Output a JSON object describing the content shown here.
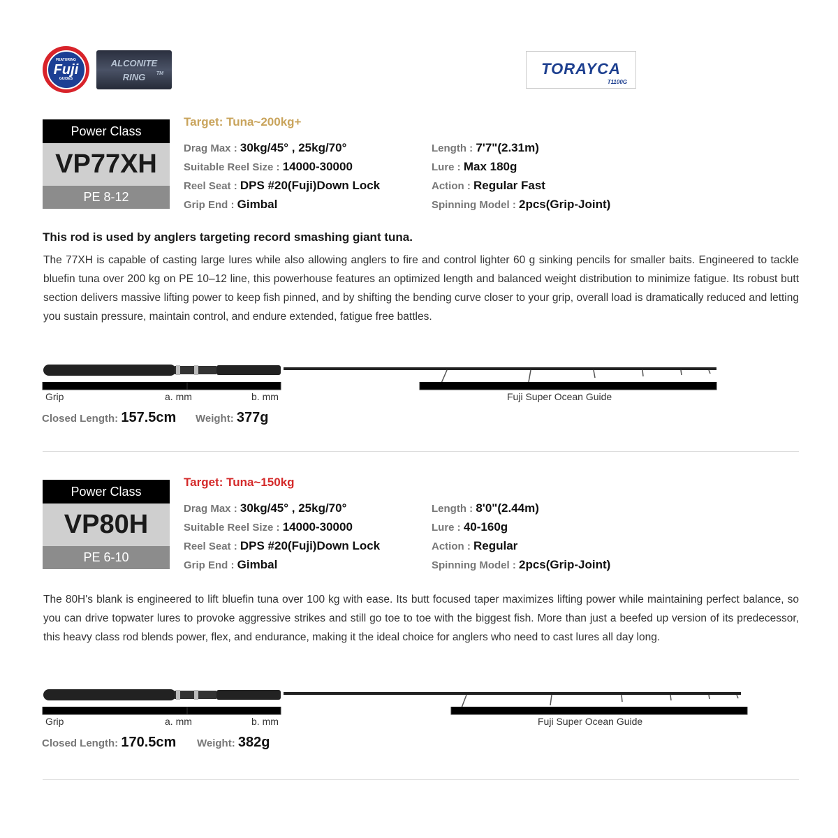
{
  "logos": {
    "fuji": {
      "top": "FEATURING",
      "main": "Fuji",
      "bottom": "GUIDES"
    },
    "alconite": {
      "line1": "ALCONITE",
      "line2": "RING",
      "tm": "TM"
    },
    "torayca": {
      "main": "TORAYCA",
      "sub": "T1100G"
    }
  },
  "products": [
    {
      "power_class_label": "Power Class",
      "model": "VP77XH",
      "pe": "PE 8-12",
      "target": "Target: Tuna~200kg+",
      "target_color": "#c9a45c",
      "specs_left": [
        {
          "key": "Drag Max : ",
          "value": " 30kg/45° , 25kg/70°"
        },
        {
          "key": "Suitable Reel Size : ",
          "value": "14000-30000"
        },
        {
          "key": "Reel Seat : ",
          "value": "DPS #20(Fuji)Down Lock"
        },
        {
          "key": "Grip End : ",
          "value": "Gimbal"
        }
      ],
      "specs_right": [
        {
          "key": "Length : ",
          "value": " 7'7\"(2.31m)"
        },
        {
          "key": "Lure : ",
          "value": "Max 180g"
        },
        {
          "key": "Action : ",
          "value": "Regular Fast"
        },
        {
          "key": "Spinning Model : ",
          "value": "2pcs(Grip-Joint)"
        }
      ],
      "heading": "This rod is used by anglers targeting record smashing giant tuna.",
      "description": "The 77XH is capable of casting large lures while also allowing anglers to fire and control lighter 60 g sinking pencils for smaller baits. Engineered to tackle bluefin tuna over 200 kg on PE 10–12 line, this powerhouse features an optimized length and balanced weight distribution to minimize fatigue. Its robust butt section delivers massive lifting power to keep fish pinned, and by shifting the bending curve closer to your grip, overall load is dramatically reduced and letting you sustain pressure, maintain control, and endure extended, fatigue free battles.",
      "diagram": {
        "grip": "Grip",
        "a": "a. mm",
        "b": "b. mm",
        "guide": "Fuji Super Ocean Guide"
      },
      "closed_length_label": "Closed Length: ",
      "closed_length": "157.5cm",
      "weight_label": "Weight: ",
      "weight": "377g"
    },
    {
      "power_class_label": "Power Class",
      "model": "VP80H",
      "pe": "PE 6-10",
      "target": "Target: Tuna~150kg",
      "target_color": "#d42a2a",
      "specs_left": [
        {
          "key": "Drag Max : ",
          "value": " 30kg/45° , 25kg/70°"
        },
        {
          "key": "Suitable Reel Size : ",
          "value": "14000-30000"
        },
        {
          "key": "Reel Seat : ",
          "value": "DPS #20(Fuji)Down Lock"
        },
        {
          "key": "Grip End : ",
          "value": "Gimbal"
        }
      ],
      "specs_right": [
        {
          "key": "Length : ",
          "value": " 8'0\"(2.44m)"
        },
        {
          "key": "Lure : ",
          "value": "40-160g"
        },
        {
          "key": "Action : ",
          "value": "Regular"
        },
        {
          "key": "Spinning Model : ",
          "value": "2pcs(Grip-Joint)"
        }
      ],
      "description": "The 80H's blank is engineered to lift bluefin tuna over 100 kg with ease. Its butt focused taper maximizes lifting power while maintaining perfect balance, so you can drive topwater lures to provoke aggressive strikes and still go toe to toe with the biggest fish. More than just a beefed up version of its predecessor, this heavy class rod blends power, flex, and endurance, making it the ideal choice for anglers who need to cast lures all day long.",
      "diagram": {
        "grip": "Grip",
        "a": "a. mm",
        "b": "b. mm",
        "guide": "Fuji Super Ocean Guide"
      },
      "closed_length_label": "Closed Length: ",
      "closed_length": "170.5cm",
      "weight_label": "Weight: ",
      "weight": "382g"
    }
  ]
}
